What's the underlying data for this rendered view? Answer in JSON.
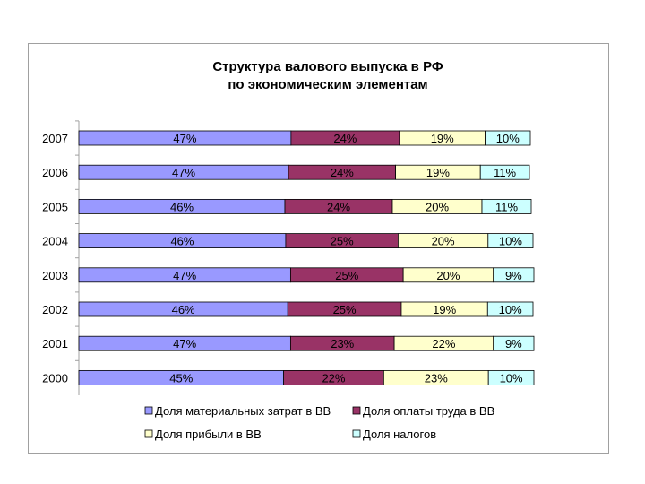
{
  "chart_data": {
    "type": "bar",
    "orientation": "horizontal",
    "stacked": "percent",
    "title": "Структура валового выпуска в РФ\nпо экономическим элементам",
    "categories": [
      "2007",
      "2006",
      "2005",
      "2004",
      "2003",
      "2002",
      "2001",
      "2000"
    ],
    "series": [
      {
        "name": "Доля материальных затрат в ВВ",
        "color": "#9999ff",
        "values": [
          47,
          47,
          46,
          46,
          47,
          46,
          47,
          45
        ]
      },
      {
        "name": "Доля оплаты труда в ВВ",
        "color": "#993366",
        "values": [
          24,
          24,
          24,
          25,
          25,
          25,
          23,
          22
        ]
      },
      {
        "name": "Доля прибыли в ВВ",
        "color": "#ffffcc",
        "values": [
          19,
          19,
          20,
          20,
          20,
          19,
          22,
          23
        ]
      },
      {
        "name": "Доля налогов",
        "color": "#ccffff",
        "values": [
          10,
          11,
          11,
          10,
          9,
          10,
          9,
          10
        ]
      }
    ],
    "data_label_suffix": "%",
    "grid": false,
    "legend_position": "bottom"
  }
}
